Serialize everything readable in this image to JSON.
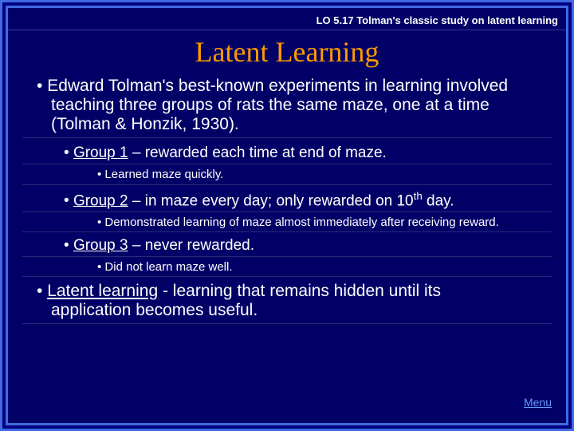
{
  "colors": {
    "background": "#000066",
    "outer_bg": "#000080",
    "border": "#4169e1",
    "title": "#ff9900",
    "text": "#ffffff",
    "link": "#6699ff",
    "divider": "#2a2a7a"
  },
  "lo_header": "LO 5.17  Tolman's classic study on latent learning",
  "title": "Latent Learning",
  "bullets": {
    "intro": "Edward Tolman's best-known experiments in learning involved teaching three groups of rats the same maze, one at a time (Tolman & Honzik, 1930).",
    "group1_label": "Group 1",
    "group1_rest": " – rewarded each time at end of maze.",
    "group1_sub": "Learned maze quickly.",
    "group2_label": "Group 2",
    "group2_rest_a": " – in maze every day; only rewarded on 10",
    "group2_rest_b": " day.",
    "group2_sup": "th",
    "group2_sub": "Demonstrated learning of maze almost immediately after receiving reward.",
    "group3_label": "Group 3",
    "group3_rest": " – never rewarded.",
    "group3_sub": "Did not learn maze well.",
    "latent_label": "Latent learning",
    "latent_rest": " - learning that remains hidden until its application becomes useful."
  },
  "menu_label": "Menu",
  "fonts": {
    "title_size": 36,
    "lvl1_size": 21,
    "lvl2_size": 19,
    "lvl3_size": 15,
    "lo_size": 13
  }
}
